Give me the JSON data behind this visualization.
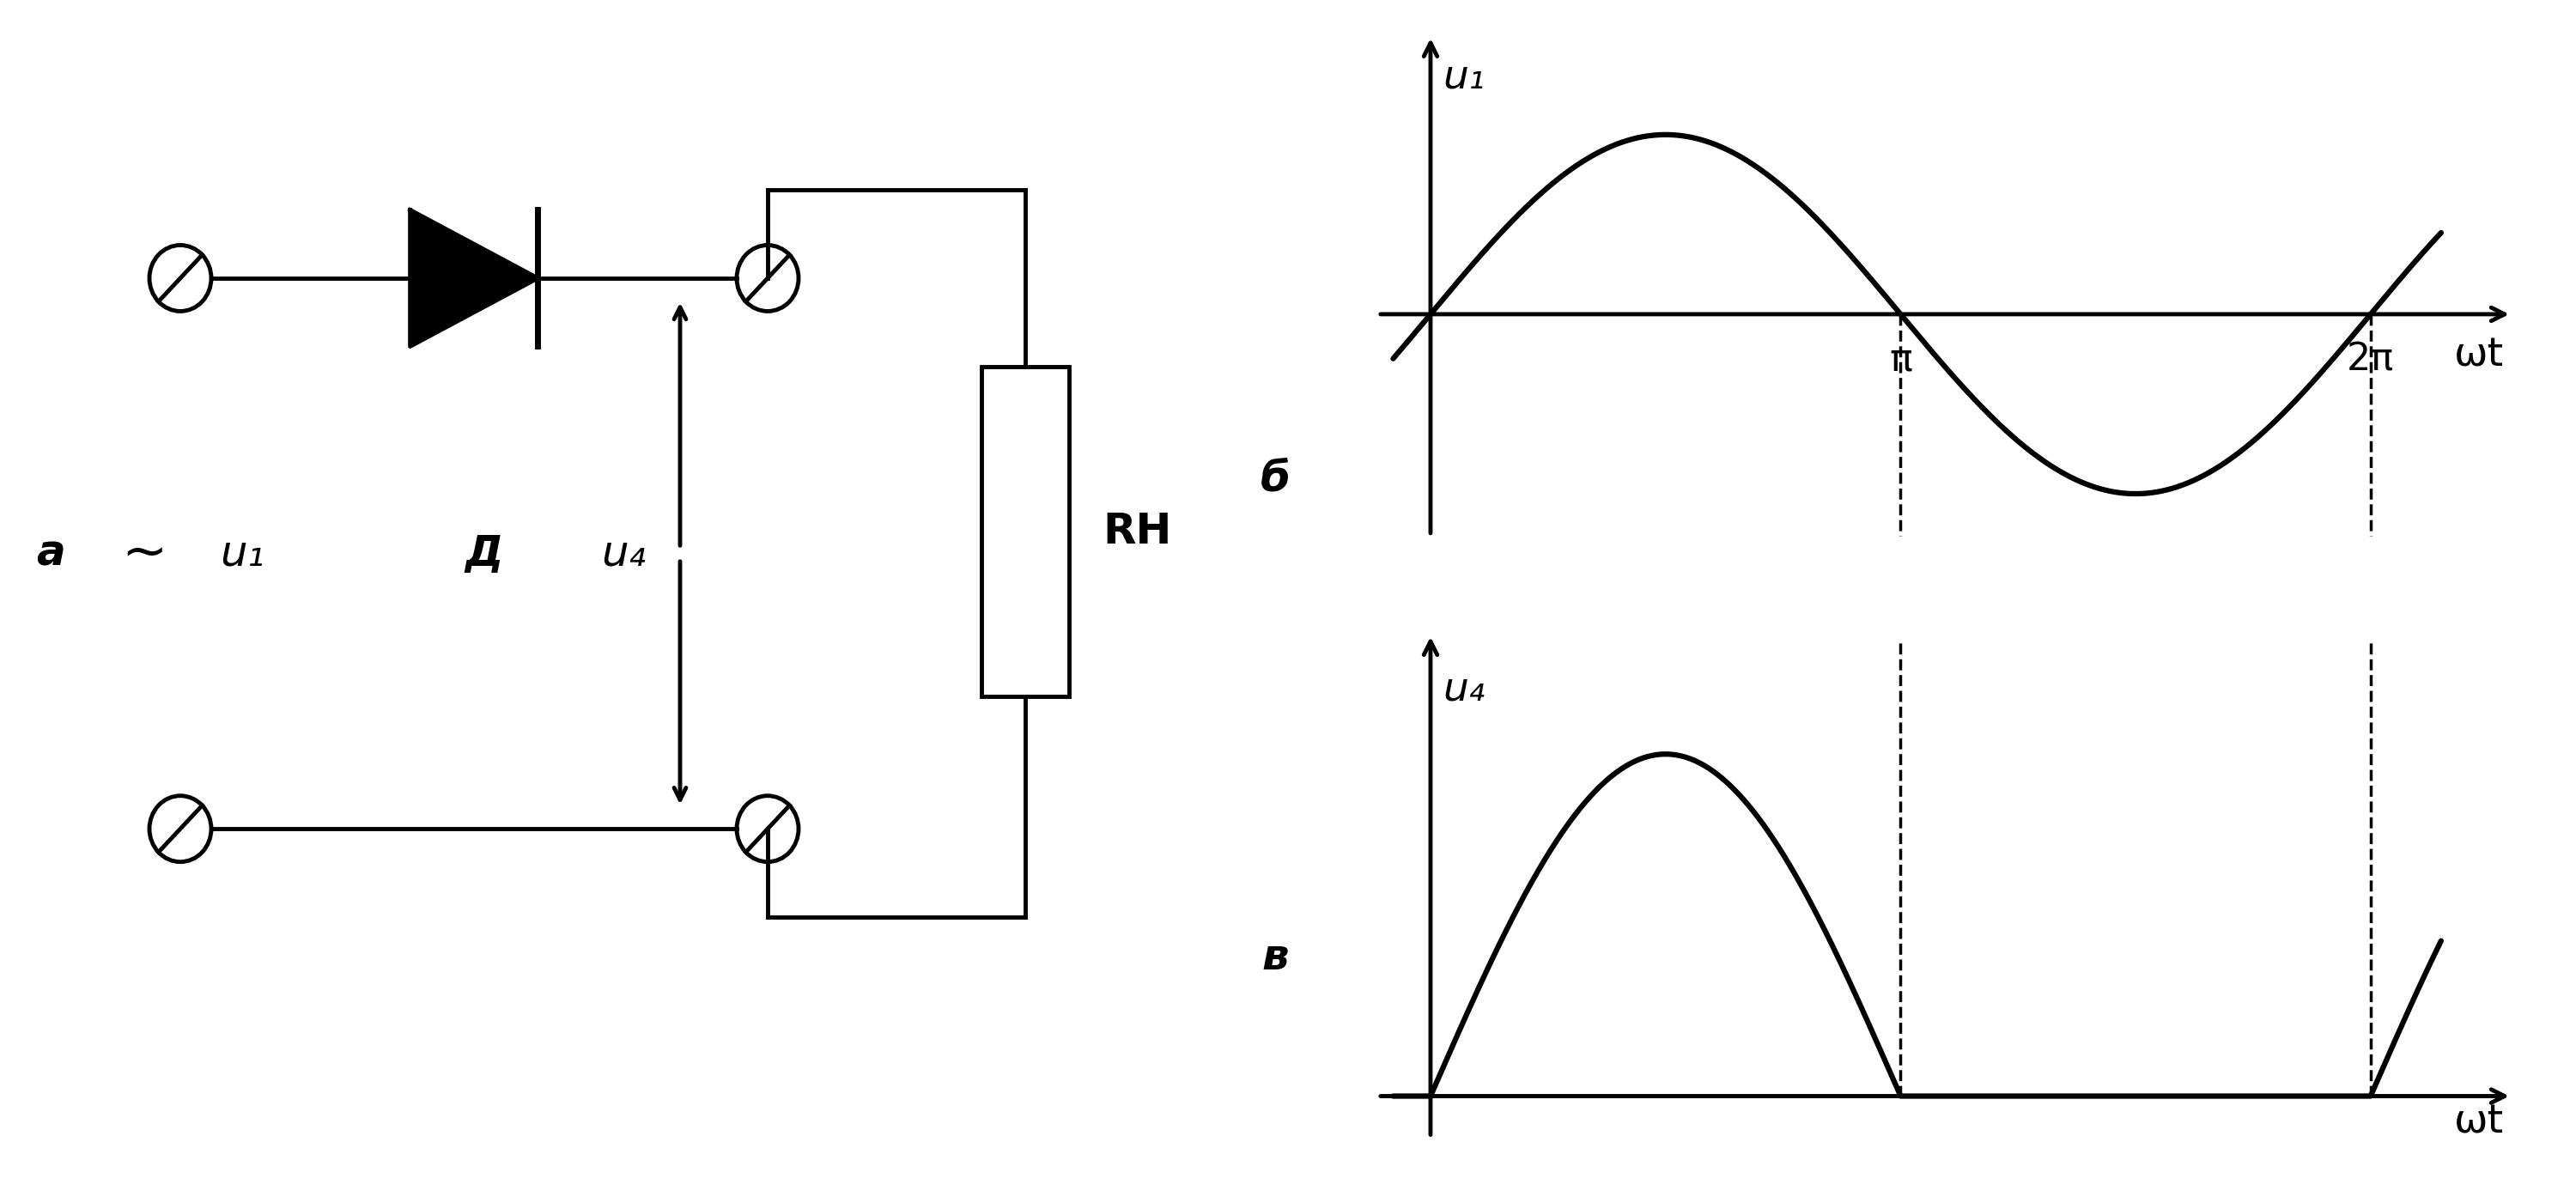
{
  "bg_color": "#ffffff",
  "line_color": "#000000",
  "line_width": 3.5,
  "circuit_label_a": "а",
  "circuit_label_sim": "~",
  "circuit_label_u1": "u₁",
  "circuit_label_D": "Д",
  "circuit_label_ud": "u₄",
  "circuit_label_Rn": "RН",
  "graph_label_b": "б",
  "graph_label_v": "в",
  "graph_u1_ylabel": "u₁",
  "graph_ud_ylabel": "u₄",
  "graph_xlabel": "ωt",
  "pi_label": "π",
  "two_pi_label": "2π",
  "font_size_labels": 32,
  "font_size_axis_labels": 34,
  "font_size_circuit_labels": 36
}
